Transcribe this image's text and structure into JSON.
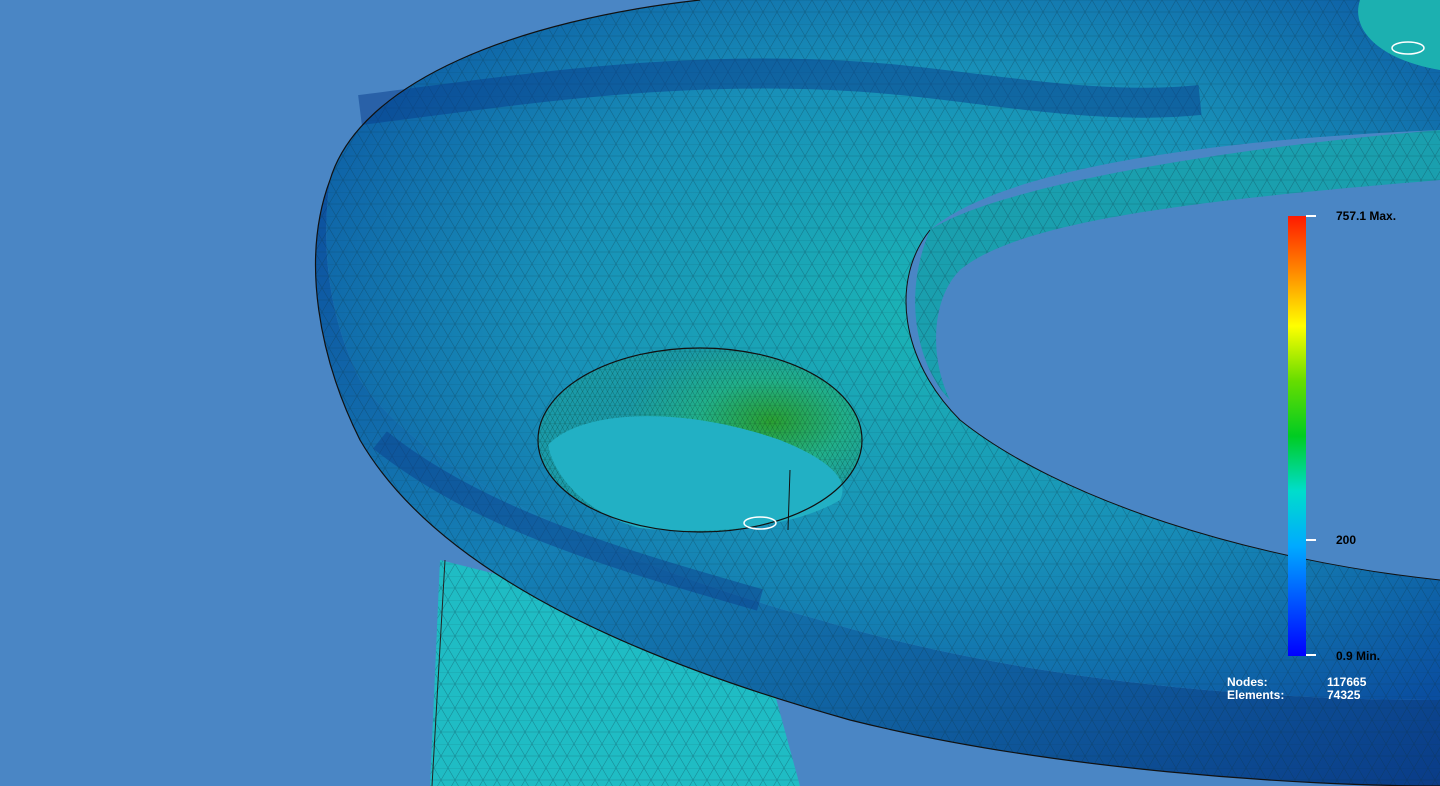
{
  "viewport": {
    "background_color": "#4a86c5",
    "model": "fea-mesh-stress-plot"
  },
  "legend": {
    "max_label": "757.1 Max.",
    "mid_label": "200",
    "min_label": "0.9 Min.",
    "max_value": 757.1,
    "mid_value": 200,
    "min_value": 0.9,
    "colors": [
      "#ff1a00",
      "#ff8800",
      "#ffff00",
      "#66dd00",
      "#00cc22",
      "#00ddcc",
      "#00aaff",
      "#0055ff",
      "#0000ff"
    ]
  },
  "stats": {
    "nodes_label": "Nodes:",
    "nodes_value": "117665",
    "elements_label": "Elements:",
    "elements_value": "74325"
  }
}
